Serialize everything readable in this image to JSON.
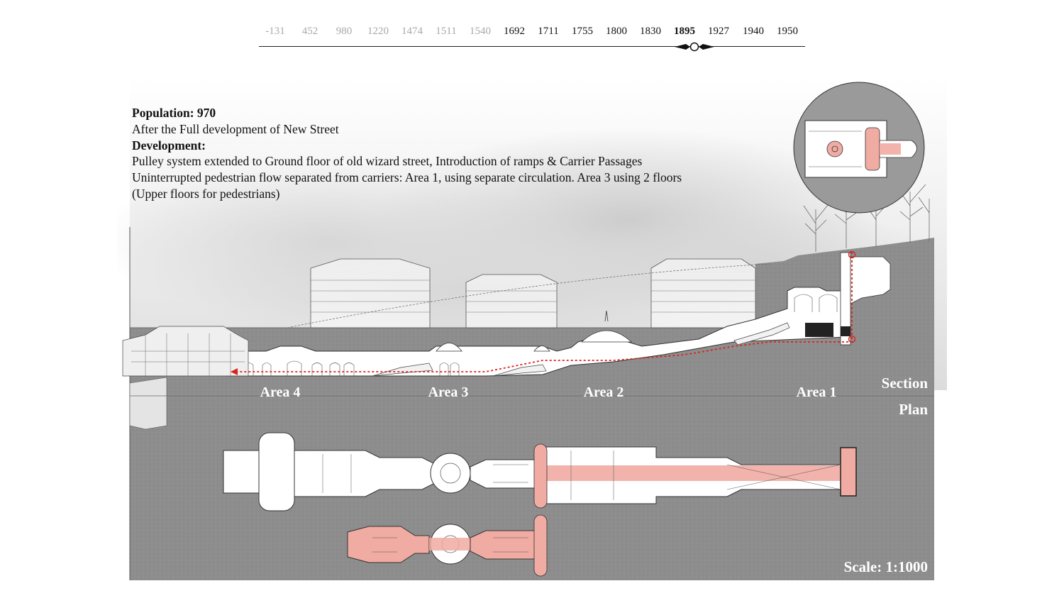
{
  "timeline": {
    "years": [
      {
        "label": "-131",
        "state": "past"
      },
      {
        "label": "452",
        "state": "past"
      },
      {
        "label": "980",
        "state": "past"
      },
      {
        "label": "1220",
        "state": "past"
      },
      {
        "label": "1474",
        "state": "past"
      },
      {
        "label": "1511",
        "state": "past"
      },
      {
        "label": "1540",
        "state": "past"
      },
      {
        "label": "1692",
        "state": "future"
      },
      {
        "label": "1711",
        "state": "future"
      },
      {
        "label": "1755",
        "state": "future"
      },
      {
        "label": "1800",
        "state": "future"
      },
      {
        "label": "1830",
        "state": "future"
      },
      {
        "label": "1895",
        "state": "active"
      },
      {
        "label": "1927",
        "state": "future"
      },
      {
        "label": "1940",
        "state": "future"
      },
      {
        "label": "1950",
        "state": "future"
      }
    ],
    "selected_year": "1895"
  },
  "description": {
    "population_line": "Population: 970",
    "subtitle": "After the Full development of New Street",
    "development_heading": "Development:",
    "lines": [
      "Pulley system extended to Ground floor of old wizard street, Introduction of ramps & Carrier Passages",
      "Uninterrupted pedestrian flow separated from carriers: Area 1, using separate circulation. Area 3 using 2 floors",
      "(Upper floors for pedestrians)"
    ]
  },
  "labels": {
    "area_4": "Area 4",
    "area_3": "Area 3",
    "area_2": "Area 2",
    "area_1": "Area 1",
    "section": "Section",
    "plan": "Plan",
    "scale": "Scale: 1:1000"
  },
  "colors": {
    "ground": "#8e8e8e",
    "sky_fog": "#d9d9d9",
    "pedestrian_route": "#f0aba2",
    "flow_arrow": "#d9241c",
    "timeline_active": "#111111",
    "timeline_past": "#a8a8a8"
  }
}
